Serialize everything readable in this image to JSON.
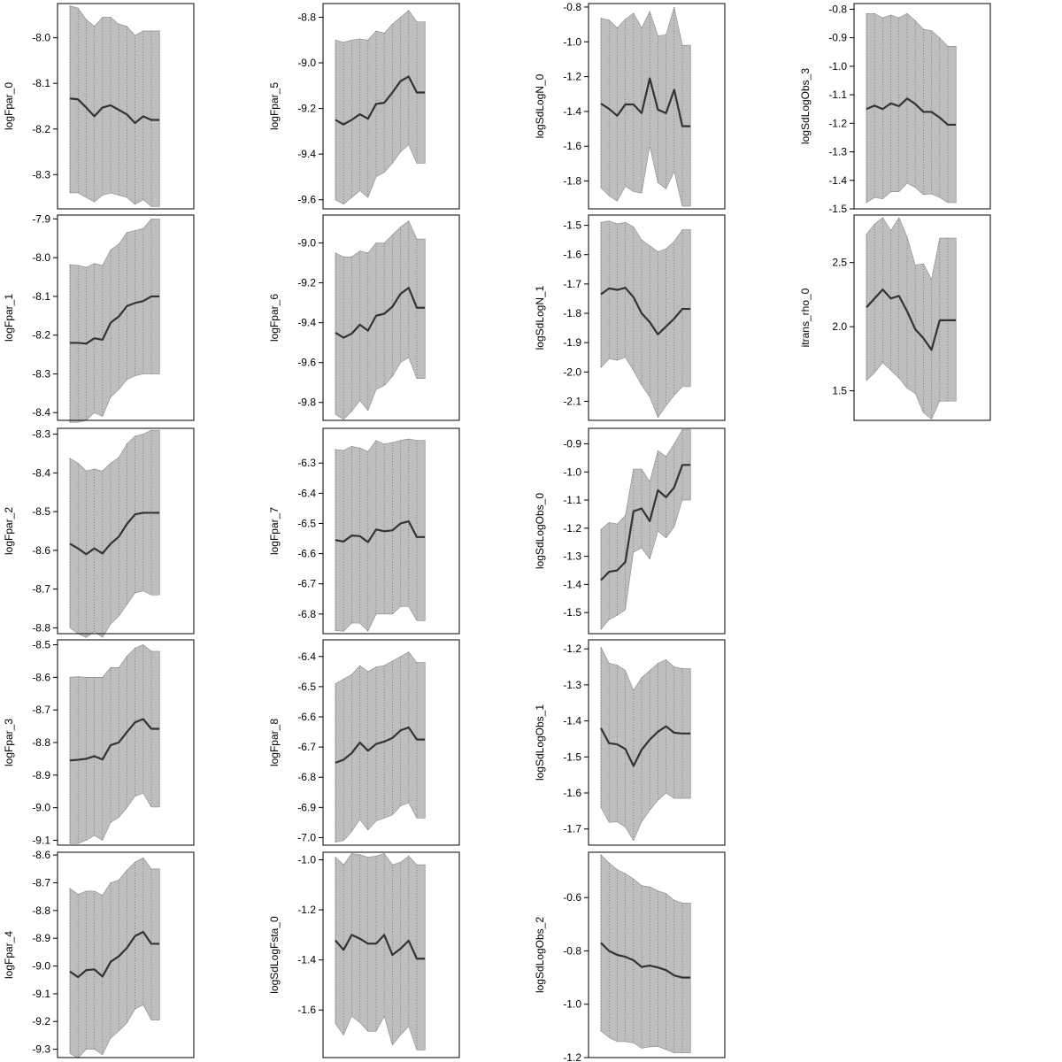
{
  "chart_data": [
    {
      "type": "line",
      "ylabel": "logFpar_0",
      "yticks": [
        -8.0,
        -8.1,
        -8.2,
        -8.3
      ],
      "ylim": [
        -8.375,
        -7.925
      ],
      "x": [
        1,
        2,
        3,
        4,
        5,
        6,
        7,
        8,
        9,
        10,
        11,
        12
      ],
      "values": [
        -8.133,
        -8.135,
        -8.153,
        -8.172,
        -8.153,
        -8.148,
        -8.158,
        -8.168,
        -8.187,
        -8.172,
        -8.18,
        -8.18
      ],
      "upper": [
        -7.93,
        -7.935,
        -7.96,
        -7.975,
        -7.955,
        -7.955,
        -7.97,
        -7.975,
        -7.995,
        -7.985,
        -7.985,
        -7.985
      ],
      "lower": [
        -8.34,
        -8.34,
        -8.35,
        -8.36,
        -8.345,
        -8.34,
        -8.345,
        -8.35,
        -8.365,
        -8.355,
        -8.37,
        -8.37
      ]
    },
    {
      "type": "line",
      "ylabel": "logFpar_1",
      "yticks": [
        -7.9,
        -8.0,
        -8.1,
        -8.2,
        -8.3,
        -8.4
      ],
      "ylim": [
        -8.42,
        -7.89
      ],
      "x": [
        1,
        2,
        3,
        4,
        5,
        6,
        7,
        8,
        9,
        10,
        11,
        12
      ],
      "values": [
        -8.22,
        -8.22,
        -8.222,
        -8.208,
        -8.212,
        -8.168,
        -8.152,
        -8.125,
        -8.117,
        -8.112,
        -8.1,
        -8.1
      ],
      "upper": [
        -8.018,
        -8.02,
        -8.025,
        -8.015,
        -8.02,
        -7.98,
        -7.965,
        -7.935,
        -7.93,
        -7.925,
        -7.9,
        -7.9
      ],
      "lower": [
        -8.425,
        -8.425,
        -8.42,
        -8.4,
        -8.41,
        -8.36,
        -8.34,
        -8.315,
        -8.305,
        -8.3,
        -8.3,
        -8.3
      ]
    },
    {
      "type": "line",
      "ylabel": "logFpar_2",
      "yticks": [
        -8.3,
        -8.4,
        -8.5,
        -8.6,
        -8.7,
        -8.8
      ],
      "ylim": [
        -8.815,
        -8.285
      ],
      "x": [
        1,
        2,
        3,
        4,
        5,
        6,
        7,
        8,
        9,
        10,
        11,
        12
      ],
      "values": [
        -8.583,
        -8.595,
        -8.61,
        -8.595,
        -8.608,
        -8.583,
        -8.565,
        -8.532,
        -8.507,
        -8.503,
        -8.503,
        -8.503
      ],
      "upper": [
        -8.362,
        -8.375,
        -8.395,
        -8.39,
        -8.395,
        -8.375,
        -8.36,
        -8.325,
        -8.305,
        -8.3,
        -8.29,
        -8.29
      ],
      "lower": [
        -8.8,
        -8.815,
        -8.825,
        -8.81,
        -8.825,
        -8.79,
        -8.77,
        -8.74,
        -8.71,
        -8.705,
        -8.715,
        -8.715
      ]
    },
    {
      "type": "line",
      "ylabel": "logFpar_3",
      "yticks": [
        -8.5,
        -8.6,
        -8.7,
        -8.8,
        -8.9,
        -9.0,
        -9.1
      ],
      "ylim": [
        -9.115,
        -8.485
      ],
      "x": [
        1,
        2,
        3,
        4,
        5,
        6,
        7,
        8,
        9,
        10,
        11,
        12
      ],
      "values": [
        -8.855,
        -8.853,
        -8.85,
        -8.842,
        -8.852,
        -8.808,
        -8.8,
        -8.768,
        -8.738,
        -8.728,
        -8.758,
        -8.758
      ],
      "upper": [
        -8.6,
        -8.598,
        -8.6,
        -8.6,
        -8.6,
        -8.57,
        -8.57,
        -8.535,
        -8.51,
        -8.5,
        -8.52,
        -8.52
      ],
      "lower": [
        -9.11,
        -9.11,
        -9.1,
        -9.085,
        -9.1,
        -9.045,
        -9.03,
        -9.0,
        -8.965,
        -8.955,
        -8.998,
        -8.998
      ]
    },
    {
      "type": "line",
      "ylabel": "logFpar_4",
      "yticks": [
        -8.6,
        -8.7,
        -8.8,
        -8.9,
        -9.0,
        -9.1,
        -9.2,
        -9.3
      ],
      "ylim": [
        -9.33,
        -8.59
      ],
      "x": [
        1,
        2,
        3,
        4,
        5,
        6,
        7,
        8,
        9,
        10,
        11,
        12
      ],
      "values": [
        -9.02,
        -9.04,
        -9.015,
        -9.012,
        -9.038,
        -8.985,
        -8.965,
        -8.935,
        -8.892,
        -8.877,
        -8.92,
        -8.92
      ],
      "upper": [
        -8.72,
        -8.742,
        -8.73,
        -8.73,
        -8.745,
        -8.7,
        -8.69,
        -8.655,
        -8.625,
        -8.61,
        -8.65,
        -8.65
      ],
      "lower": [
        -9.315,
        -9.332,
        -9.3,
        -9.3,
        -9.32,
        -9.26,
        -9.235,
        -9.205,
        -9.155,
        -9.14,
        -9.195,
        -9.195
      ]
    },
    {
      "type": "line",
      "ylabel": "logFpar_5",
      "yticks": [
        -8.8,
        -9.0,
        -9.2,
        -9.4,
        -9.6
      ],
      "ylim": [
        -9.64,
        -8.74
      ],
      "x": [
        1,
        2,
        3,
        4,
        5,
        6,
        7,
        8,
        9,
        10,
        11,
        12
      ],
      "values": [
        -9.25,
        -9.27,
        -9.25,
        -9.225,
        -9.245,
        -9.18,
        -9.175,
        -9.13,
        -9.08,
        -9.06,
        -9.13,
        -9.13
      ],
      "upper": [
        -8.9,
        -8.91,
        -8.9,
        -8.895,
        -8.9,
        -8.86,
        -8.87,
        -8.83,
        -8.8,
        -8.77,
        -8.82,
        -8.82
      ],
      "lower": [
        -9.6,
        -9.62,
        -9.59,
        -9.56,
        -9.59,
        -9.5,
        -9.48,
        -9.44,
        -9.39,
        -9.36,
        -9.44,
        -9.44
      ]
    },
    {
      "type": "line",
      "ylabel": "logFpar_6",
      "yticks": [
        -9.0,
        -9.2,
        -9.4,
        -9.6,
        -9.8
      ],
      "ylim": [
        -9.89,
        -8.86
      ],
      "x": [
        1,
        2,
        3,
        4,
        5,
        6,
        7,
        8,
        9,
        10,
        11,
        12
      ],
      "values": [
        -9.45,
        -9.475,
        -9.455,
        -9.41,
        -9.44,
        -9.365,
        -9.355,
        -9.32,
        -9.255,
        -9.225,
        -9.325,
        -9.325
      ],
      "upper": [
        -9.05,
        -9.07,
        -9.07,
        -9.04,
        -9.05,
        -9.0,
        -9.0,
        -8.96,
        -8.92,
        -8.89,
        -8.98,
        -8.98
      ],
      "lower": [
        -9.86,
        -9.885,
        -9.845,
        -9.79,
        -9.84,
        -9.735,
        -9.715,
        -9.67,
        -9.6,
        -9.575,
        -9.68,
        -9.68
      ]
    },
    {
      "type": "line",
      "ylabel": "logFpar_7",
      "yticks": [
        -6.3,
        -6.4,
        -6.5,
        -6.6,
        -6.7,
        -6.8
      ],
      "ylim": [
        -6.865,
        -6.185
      ],
      "x": [
        1,
        2,
        3,
        4,
        5,
        6,
        7,
        8,
        9,
        10,
        11,
        12
      ],
      "values": [
        -6.555,
        -6.56,
        -6.54,
        -6.542,
        -6.562,
        -6.52,
        -6.526,
        -6.523,
        -6.5,
        -6.493,
        -6.545,
        -6.545
      ],
      "upper": [
        -6.255,
        -6.258,
        -6.245,
        -6.25,
        -6.262,
        -6.225,
        -6.237,
        -6.232,
        -6.225,
        -6.22,
        -6.225,
        -6.225
      ],
      "lower": [
        -6.855,
        -6.857,
        -6.83,
        -6.83,
        -6.857,
        -6.8,
        -6.8,
        -6.8,
        -6.775,
        -6.775,
        -6.822,
        -6.822
      ]
    },
    {
      "type": "line",
      "ylabel": "logFpar_8",
      "yticks": [
        -6.4,
        -6.5,
        -6.6,
        -6.7,
        -6.8,
        -6.9,
        -7.0
      ],
      "ylim": [
        -7.025,
        -6.345
      ],
      "x": [
        1,
        2,
        3,
        4,
        5,
        6,
        7,
        8,
        9,
        10,
        11,
        12
      ],
      "values": [
        -6.752,
        -6.742,
        -6.72,
        -6.685,
        -6.712,
        -6.69,
        -6.682,
        -6.67,
        -6.645,
        -6.635,
        -6.675,
        -6.675
      ],
      "upper": [
        -6.49,
        -6.475,
        -6.46,
        -6.43,
        -6.45,
        -6.435,
        -6.43,
        -6.415,
        -6.4,
        -6.385,
        -6.42,
        -6.42
      ],
      "lower": [
        -7.015,
        -7.01,
        -6.98,
        -6.94,
        -6.975,
        -6.945,
        -6.935,
        -6.925,
        -6.895,
        -6.885,
        -6.935,
        -6.935
      ]
    },
    {
      "type": "line",
      "ylabel": "logSdLogFsta_0",
      "yticks": [
        -1.0,
        -1.2,
        -1.4,
        -1.6
      ],
      "ylim": [
        -1.79,
        -0.97
      ],
      "x": [
        1,
        2,
        3,
        4,
        5,
        6,
        7,
        8,
        9,
        10,
        11,
        12
      ],
      "values": [
        -1.322,
        -1.36,
        -1.3,
        -1.315,
        -1.335,
        -1.335,
        -1.3,
        -1.38,
        -1.355,
        -1.323,
        -1.395,
        -1.395
      ],
      "upper": [
        -0.99,
        -1.02,
        -0.975,
        -0.98,
        -0.99,
        -0.985,
        -0.975,
        -1.02,
        -1.01,
        -0.985,
        -1.02,
        -1.02
      ],
      "lower": [
        -1.655,
        -1.7,
        -1.625,
        -1.65,
        -1.685,
        -1.685,
        -1.625,
        -1.74,
        -1.7,
        -1.665,
        -1.76,
        -1.76
      ]
    },
    {
      "type": "line",
      "ylabel": "logSdLogN_0",
      "yticks": [
        -0.8,
        -1.0,
        -1.2,
        -1.4,
        -1.6,
        -1.8
      ],
      "ylim": [
        -1.96,
        -0.78
      ],
      "x": [
        1,
        2,
        3,
        4,
        5,
        6,
        7,
        8,
        9,
        10,
        11,
        12
      ],
      "values": [
        -1.355,
        -1.385,
        -1.425,
        -1.36,
        -1.36,
        -1.41,
        -1.21,
        -1.39,
        -1.41,
        -1.275,
        -1.485,
        -1.485
      ],
      "upper": [
        -0.865,
        -0.875,
        -0.92,
        -0.87,
        -0.835,
        -0.92,
        -0.825,
        -0.965,
        -0.96,
        -0.8,
        -1.02,
        -1.02
      ],
      "lower": [
        -1.84,
        -1.885,
        -1.915,
        -1.83,
        -1.86,
        -1.87,
        -1.6,
        -1.81,
        -1.845,
        -1.745,
        -1.945,
        -1.945
      ]
    },
    {
      "type": "line",
      "ylabel": "logSdLogN_1",
      "yticks": [
        -1.5,
        -1.6,
        -1.7,
        -1.8,
        -1.9,
        -2.0,
        -2.1
      ],
      "ylim": [
        -2.165,
        -1.465
      ],
      "x": [
        1,
        2,
        3,
        4,
        5,
        6,
        7,
        8,
        9,
        10,
        11,
        12
      ],
      "values": [
        -1.735,
        -1.715,
        -1.72,
        -1.713,
        -1.745,
        -1.8,
        -1.83,
        -1.872,
        -1.845,
        -1.818,
        -1.785,
        -1.785
      ],
      "upper": [
        -1.49,
        -1.485,
        -1.495,
        -1.49,
        -1.505,
        -1.55,
        -1.57,
        -1.59,
        -1.58,
        -1.555,
        -1.515,
        -1.515
      ],
      "lower": [
        -1.985,
        -1.955,
        -1.96,
        -1.95,
        -1.995,
        -2.045,
        -2.085,
        -2.155,
        -2.115,
        -2.08,
        -2.05,
        -2.05
      ]
    },
    {
      "type": "line",
      "ylabel": "logSdLogObs_0",
      "yticks": [
        -0.9,
        -1.0,
        -1.1,
        -1.2,
        -1.3,
        -1.4,
        -1.5
      ],
      "ylim": [
        -1.575,
        -0.845
      ],
      "x": [
        1,
        2,
        3,
        4,
        5,
        6,
        7,
        8,
        9,
        10,
        11,
        12
      ],
      "values": [
        -1.385,
        -1.355,
        -1.35,
        -1.32,
        -1.14,
        -1.13,
        -1.175,
        -1.065,
        -1.09,
        -1.055,
        -0.975,
        -0.975
      ],
      "upper": [
        -1.205,
        -1.18,
        -1.185,
        -1.155,
        -0.99,
        -0.99,
        -1.035,
        -0.925,
        -0.945,
        -0.9,
        -0.85,
        -0.85
      ],
      "lower": [
        -1.56,
        -1.525,
        -1.51,
        -1.49,
        -1.285,
        -1.27,
        -1.31,
        -1.21,
        -1.235,
        -1.195,
        -1.1,
        -1.1
      ]
    },
    {
      "type": "line",
      "ylabel": "logSdLogObs_1",
      "yticks": [
        -1.2,
        -1.3,
        -1.4,
        -1.5,
        -1.6,
        -1.7
      ],
      "ylim": [
        -1.745,
        -1.175
      ],
      "x": [
        1,
        2,
        3,
        4,
        5,
        6,
        7,
        8,
        9,
        10,
        11,
        12
      ],
      "values": [
        -1.42,
        -1.462,
        -1.465,
        -1.478,
        -1.525,
        -1.48,
        -1.452,
        -1.43,
        -1.415,
        -1.433,
        -1.435,
        -1.435
      ],
      "upper": [
        -1.195,
        -1.24,
        -1.245,
        -1.26,
        -1.315,
        -1.28,
        -1.26,
        -1.24,
        -1.23,
        -1.25,
        -1.255,
        -1.255
      ],
      "lower": [
        -1.64,
        -1.682,
        -1.68,
        -1.695,
        -1.732,
        -1.68,
        -1.648,
        -1.62,
        -1.6,
        -1.615,
        -1.615,
        -1.615
      ]
    },
    {
      "type": "line",
      "ylabel": "logSdLogObs_2",
      "yticks": [
        -0.6,
        -0.8,
        -1.0,
        -1.2
      ],
      "ylim": [
        -1.2,
        -0.43
      ],
      "x": [
        1,
        2,
        3,
        4,
        5,
        6,
        7,
        8,
        9,
        10,
        11,
        12
      ],
      "values": [
        -0.77,
        -0.8,
        -0.815,
        -0.822,
        -0.835,
        -0.86,
        -0.855,
        -0.862,
        -0.872,
        -0.892,
        -0.9,
        -0.9
      ],
      "upper": [
        -0.44,
        -0.47,
        -0.495,
        -0.51,
        -0.53,
        -0.555,
        -0.56,
        -0.575,
        -0.585,
        -0.61,
        -0.62,
        -0.62
      ],
      "lower": [
        -1.1,
        -1.125,
        -1.14,
        -1.14,
        -1.145,
        -1.165,
        -1.16,
        -1.158,
        -1.17,
        -1.182,
        -1.182,
        -1.182
      ]
    },
    {
      "type": "line",
      "ylabel": "logSdLogObs_3",
      "yticks": [
        -0.8,
        -0.9,
        -1.0,
        -1.1,
        -1.2,
        -1.3,
        -1.4,
        -1.5
      ],
      "ylim": [
        -1.5,
        -0.78
      ],
      "x": [
        1,
        2,
        3,
        4,
        5,
        6,
        7,
        8,
        9,
        10,
        11,
        12
      ],
      "values": [
        -1.15,
        -1.138,
        -1.15,
        -1.13,
        -1.14,
        -1.113,
        -1.132,
        -1.16,
        -1.16,
        -1.18,
        -1.205,
        -1.205
      ],
      "upper": [
        -0.815,
        -0.815,
        -0.83,
        -0.82,
        -0.83,
        -0.815,
        -0.84,
        -0.87,
        -0.875,
        -0.9,
        -0.93,
        -0.93
      ],
      "lower": [
        -1.478,
        -1.46,
        -1.465,
        -1.44,
        -1.44,
        -1.41,
        -1.425,
        -1.45,
        -1.448,
        -1.46,
        -1.478,
        -1.478
      ]
    },
    {
      "type": "line",
      "ylabel": "itrans_rho_0",
      "yticks": [
        1.5,
        2.0,
        2.5
      ],
      "ylim": [
        1.27,
        2.87
      ],
      "x": [
        1,
        2,
        3,
        4,
        5,
        6,
        7,
        8,
        9,
        10,
        11,
        12
      ],
      "values": [
        2.15,
        2.22,
        2.29,
        2.22,
        2.24,
        2.12,
        1.98,
        1.91,
        1.82,
        2.05,
        2.05,
        2.05
      ],
      "upper": [
        2.72,
        2.8,
        2.85,
        2.75,
        2.85,
        2.7,
        2.48,
        2.49,
        2.37,
        2.69,
        2.69,
        2.69
      ],
      "lower": [
        1.58,
        1.64,
        1.72,
        1.66,
        1.6,
        1.52,
        1.48,
        1.33,
        1.28,
        1.42,
        1.42,
        1.42
      ]
    }
  ]
}
